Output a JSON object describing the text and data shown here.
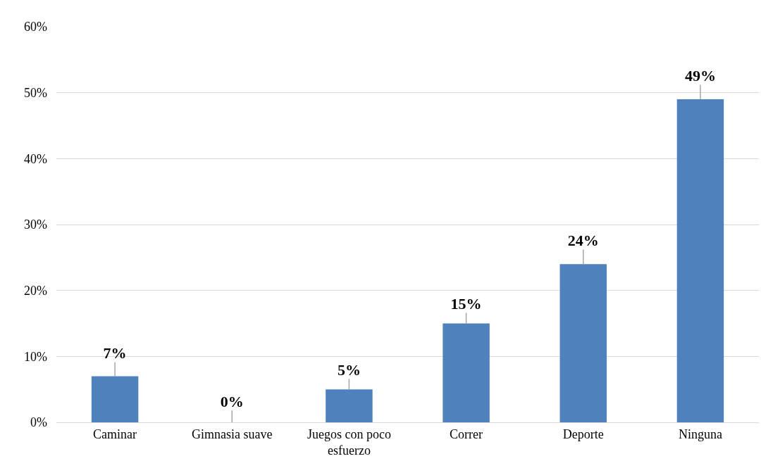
{
  "chart_data": {
    "type": "bar",
    "categories": [
      "Caminar",
      "Gimnasia suave",
      "Juegos con poco esfuerzo",
      "Correr",
      "Deporte",
      "Ninguna"
    ],
    "values": [
      7,
      0,
      5,
      15,
      24,
      49
    ],
    "errors": [
      [
        7,
        9.1
      ],
      [
        0,
        1.8
      ],
      [
        5,
        6.6
      ],
      [
        15,
        16.6
      ],
      [
        24,
        26.2
      ],
      [
        49,
        51.2
      ]
    ],
    "color": "#4f81bd",
    "value_labels": [
      "7%",
      "0%",
      "5%",
      "15%",
      "24%",
      "49%"
    ],
    "ylim": [
      0,
      60
    ],
    "yticks": [
      {
        "value": 0,
        "label": "0%"
      },
      {
        "value": 10,
        "label": "10%"
      },
      {
        "value": 20,
        "label": "20%"
      },
      {
        "value": 30,
        "label": "30%"
      },
      {
        "value": 40,
        "label": "40%"
      },
      {
        "value": 50,
        "label": "50%"
      },
      {
        "value": 60,
        "label": "60%"
      }
    ],
    "grid": "y"
  }
}
